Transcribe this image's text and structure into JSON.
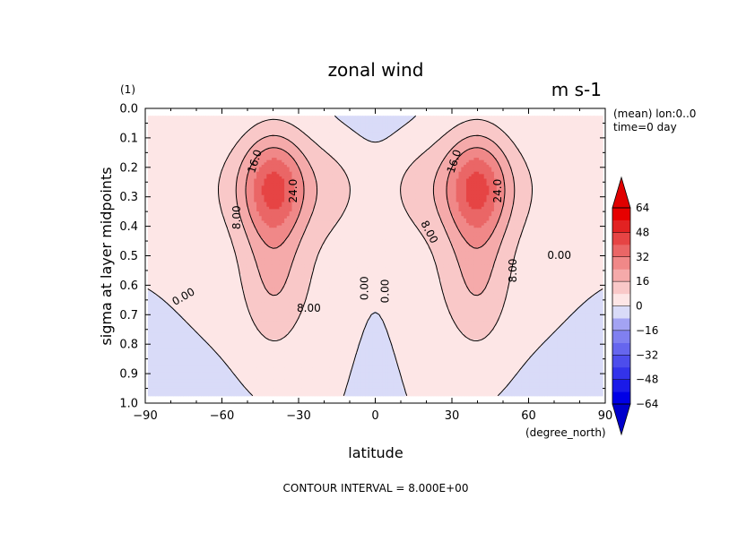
{
  "chart_data": {
    "type": "contour",
    "title": "zonal wind",
    "units": "m s-1",
    "y_units_tag": "(1)",
    "xlabel": "latitude",
    "x_units": "(degree_north)",
    "ylabel": "sigma at layer midpoints",
    "annotations": [
      "(mean) lon:0..0",
      "time=0 day"
    ],
    "footer": "CONTOUR INTERVAL = 8.000E+00",
    "xlim": [
      -90,
      90
    ],
    "ylim": [
      1.0,
      0.0
    ],
    "x_ticks": [
      -90,
      -60,
      -30,
      0,
      30,
      60,
      90
    ],
    "x_tick_labels": [
      "−90",
      "−60",
      "−30",
      "0",
      "30",
      "60",
      "90"
    ],
    "y_ticks": [
      0.0,
      0.1,
      0.2,
      0.3,
      0.4,
      0.5,
      0.6,
      0.7,
      0.8,
      0.9,
      1.0
    ],
    "y_tick_labels": [
      "0.0",
      "0.1",
      "0.2",
      "0.3",
      "0.4",
      "0.5",
      "0.6",
      "0.7",
      "0.8",
      "0.9",
      "1.0"
    ],
    "contour_interval": 8,
    "colorbar": {
      "levels": [
        -64,
        -48,
        -32,
        -16,
        0,
        16,
        32,
        48,
        64
      ],
      "labels": [
        "64",
        "48",
        "32",
        "16",
        "0",
        "−16",
        "−32",
        "−48",
        "−64"
      ],
      "bin_edges": [
        -64,
        -56,
        -48,
        -40,
        -32,
        -24,
        -16,
        -8,
        0,
        8,
        16,
        24,
        32,
        40,
        48,
        56,
        64
      ],
      "bin_colors": [
        "#0000e6",
        "#1a1ae8",
        "#3333ea",
        "#4d4dec",
        "#6666ee",
        "#8080f0",
        "#a3a3f3",
        "#d9dbf8",
        "#fde6e6",
        "#f9c8c8",
        "#f5aaaa",
        "#f08888",
        "#ea6666",
        "#e64444",
        "#e22222",
        "#e60000"
      ],
      "under_color": "#0000cc",
      "over_color": "#e00000"
    },
    "contour_labels": [
      {
        "text": "16.0",
        "lat": -47,
        "sigma": 0.18,
        "angle": -72
      },
      {
        "text": "24.0",
        "lat": -32,
        "sigma": 0.28,
        "angle": -90
      },
      {
        "text": "8.00",
        "lat": -54,
        "sigma": 0.37,
        "angle": -90
      },
      {
        "text": "8.00",
        "lat": -26,
        "sigma": 0.68,
        "angle": 0
      },
      {
        "text": "0.00",
        "lat": -75,
        "sigma": 0.64,
        "angle": -30
      },
      {
        "text": "0.00",
        "lat": -4,
        "sigma": 0.61,
        "angle": -90
      },
      {
        "text": "0.00",
        "lat": 4,
        "sigma": 0.62,
        "angle": -90
      },
      {
        "text": "16.0",
        "lat": 31,
        "sigma": 0.18,
        "angle": -72
      },
      {
        "text": "24.0",
        "lat": 48,
        "sigma": 0.28,
        "angle": -90
      },
      {
        "text": "8.00",
        "lat": 21,
        "sigma": 0.42,
        "angle": 62
      },
      {
        "text": "8.00",
        "lat": 54,
        "sigma": 0.55,
        "angle": -90
      },
      {
        "text": "0.00",
        "lat": 72,
        "sigma": 0.5,
        "angle": 0
      }
    ]
  }
}
